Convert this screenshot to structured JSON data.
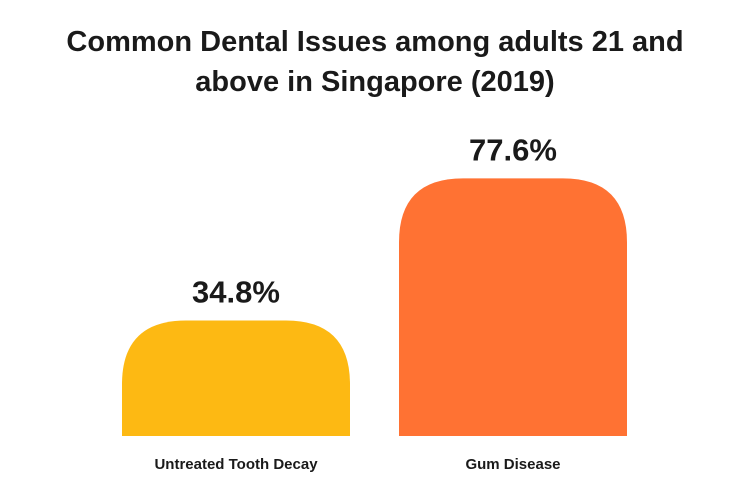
{
  "chart_data": {
    "type": "bar",
    "title_lines": [
      "Common Dental Issues among adults 21 and",
      "above in Singapore (2019)"
    ],
    "categories": [
      "Untreated Tooth Decay",
      "Gum Disease"
    ],
    "values": [
      34.8,
      77.6
    ],
    "data_labels": [
      "34.8%",
      "77.6%"
    ],
    "colors": [
      "#FDB913",
      "#FF7233"
    ],
    "value_unit": "%",
    "ylim": [
      0,
      100
    ],
    "xlabel": "",
    "ylabel": "",
    "grid": false,
    "legend": "none"
  }
}
